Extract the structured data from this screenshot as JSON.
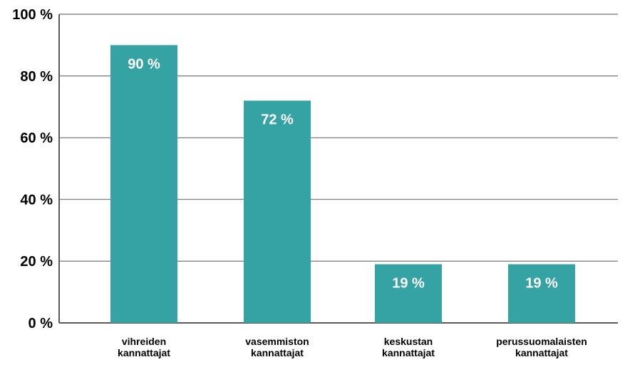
{
  "chart_data": {
    "type": "bar",
    "title": "",
    "xlabel": "",
    "ylabel": "",
    "categories": [
      [
        "vihreiden",
        "kannattajat"
      ],
      [
        "vasemmiston",
        "kannattajat"
      ],
      [
        "keskustan",
        "kannattajat"
      ],
      [
        "perussuomalaisten",
        "kannattajat"
      ]
    ],
    "values": [
      90,
      72,
      19,
      19
    ],
    "data_labels": [
      "90 %",
      "72 %",
      "19 %",
      "19 %"
    ],
    "ylim": [
      0,
      100
    ],
    "yticks": [
      0,
      20,
      40,
      60,
      80,
      100
    ],
    "ytick_labels": [
      "0 %",
      "20 %",
      "40 %",
      "60 %",
      "80 %",
      "100 %"
    ],
    "grid": true,
    "legend": "none",
    "colors": {
      "bar": "#35a3a3",
      "grid": "#8c8c8c",
      "axis": "#5a5a5a",
      "text": "#000000",
      "data_label": "#ffffff"
    }
  }
}
